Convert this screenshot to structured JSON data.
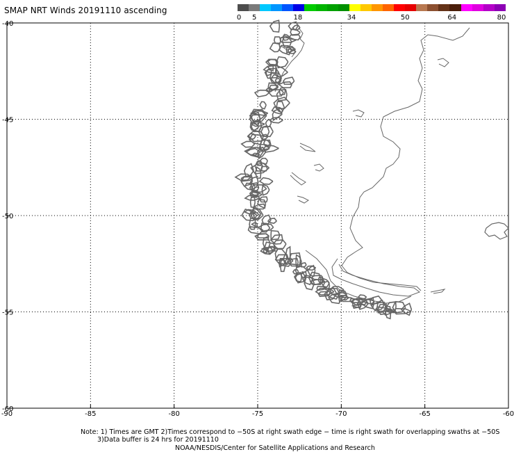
{
  "title": "SMAP NRT Winds 20191110 ascending",
  "colorbar": {
    "colors": [
      "#4d4d4d",
      "#7a7a7a",
      "#00c8ff",
      "#0096ff",
      "#0055ff",
      "#0000e6",
      "#00cc00",
      "#00b400",
      "#00a000",
      "#009000",
      "#ffff00",
      "#ffc800",
      "#ff9600",
      "#ff6400",
      "#ff0000",
      "#e60000",
      "#b87850",
      "#8c5030",
      "#643218",
      "#4a1e0a",
      "#ff00ff",
      "#e000e0",
      "#b400c8",
      "#8c00b4"
    ],
    "labels": [
      {
        "text": "0",
        "pos": 0
      },
      {
        "text": "5",
        "pos": 5
      },
      {
        "text": "18",
        "pos": 18
      },
      {
        "text": "34",
        "pos": 34
      },
      {
        "text": "50",
        "pos": 50
      },
      {
        "text": "64",
        "pos": 64
      },
      {
        "text": "80",
        "pos": 80
      }
    ]
  },
  "map": {
    "lon_range": [
      -90,
      -60
    ],
    "lat_range": [
      -60,
      -40
    ],
    "x_ticks": [
      {
        "value": -90,
        "label": "-90"
      },
      {
        "value": -85,
        "label": "-85"
      },
      {
        "value": -80,
        "label": "-80"
      },
      {
        "value": -75,
        "label": "-75"
      },
      {
        "value": -70,
        "label": "-70"
      },
      {
        "value": -65,
        "label": "-65"
      },
      {
        "value": -60,
        "label": "-60"
      }
    ],
    "y_ticks": [
      {
        "value": -40,
        "label": "-40"
      },
      {
        "value": -45,
        "label": "-45"
      },
      {
        "value": -50,
        "label": "-50"
      },
      {
        "value": -55,
        "label": "-55"
      },
      {
        "value": -60,
        "label": "-60"
      }
    ],
    "grid": "dotted",
    "coast_color": "#666666"
  },
  "notes": {
    "line1": "Note: 1) Times are GMT 2)Times correspond to −50S at right swath edge − time is right swath for overlapping swaths at −50S",
    "line2": "3)Data buffer is 24 hrs for 20191110",
    "line3": "NOAA/NESDIS/Center for Satellite Applications and Research"
  }
}
